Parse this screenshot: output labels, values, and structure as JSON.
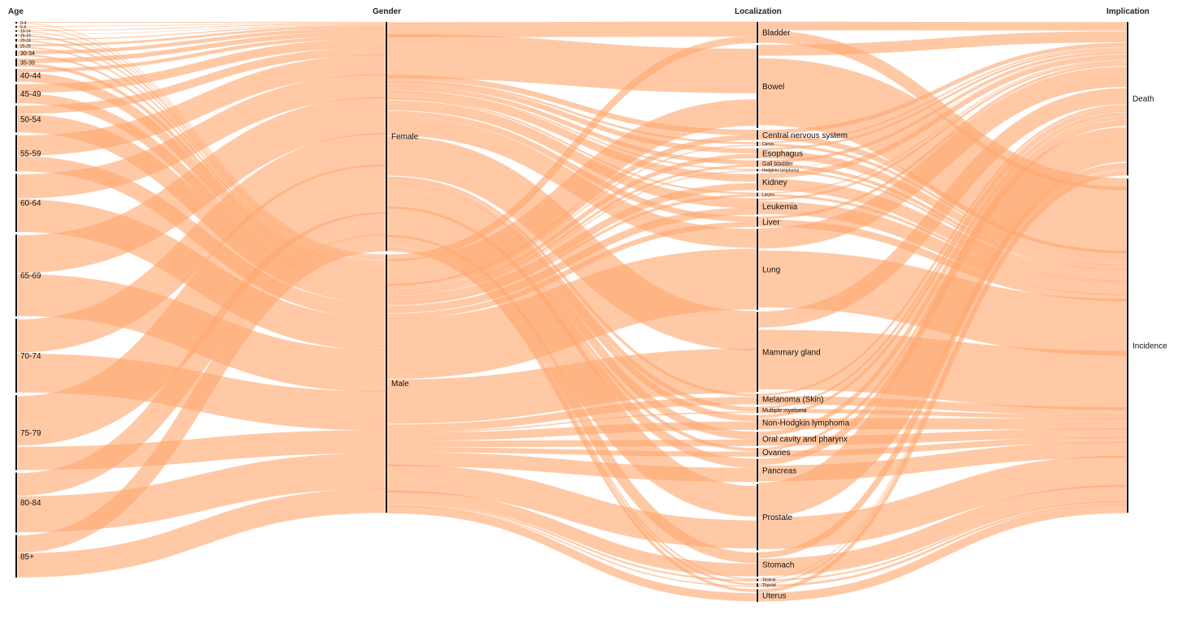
{
  "chart_data": {
    "type": "parallel_sets",
    "colors": {
      "ribbon": "#ffa870",
      "axis": "#111111",
      "background": "#ffffff"
    },
    "dimensions": [
      {
        "title": "Age",
        "categories": [
          {
            "label": "0-4",
            "weight": 0.3
          },
          {
            "label": "5-9",
            "weight": 0.3
          },
          {
            "label": "10-14",
            "weight": 0.3
          },
          {
            "label": "15-19",
            "weight": 0.4
          },
          {
            "label": "20-24",
            "weight": 0.5
          },
          {
            "label": "25-29",
            "weight": 0.7
          },
          {
            "label": "30-34",
            "weight": 1.0
          },
          {
            "label": "35-39",
            "weight": 1.4
          },
          {
            "label": "40-44",
            "weight": 2.3
          },
          {
            "label": "45-49",
            "weight": 3.4
          },
          {
            "label": "50-54",
            "weight": 4.8
          },
          {
            "label": "55-59",
            "weight": 6.5
          },
          {
            "label": "60-64",
            "weight": 10.4
          },
          {
            "label": "65-69",
            "weight": 14.6
          },
          {
            "label": "70-74",
            "weight": 13.2
          },
          {
            "label": "75-79",
            "weight": 13.4
          },
          {
            "label": "80-84",
            "weight": 10.7
          },
          {
            "label": "85+",
            "weight": 7.6
          }
        ]
      },
      {
        "title": "Gender",
        "categories": [
          {
            "label": "Female",
            "weight": 47
          },
          {
            "label": "Male",
            "weight": 53
          }
        ]
      },
      {
        "title": "Localization",
        "categories": [
          {
            "label": "Bladder",
            "weight": 3.3
          },
          {
            "label": "Bowel",
            "weight": 13.0
          },
          {
            "label": "Central nervous system",
            "weight": 1.5
          },
          {
            "label": "Cervix",
            "weight": 0.7
          },
          {
            "label": "Esophagus",
            "weight": 1.6
          },
          {
            "label": "Gall bladder",
            "weight": 1.0
          },
          {
            "label": "Hodgkins lymphoma",
            "weight": 0.4
          },
          {
            "label": "Kidney",
            "weight": 2.7
          },
          {
            "label": "Larynx",
            "weight": 0.6
          },
          {
            "label": "Leukemia",
            "weight": 2.5
          },
          {
            "label": "Liver",
            "weight": 1.6
          },
          {
            "label": "Lung",
            "weight": 12.7
          },
          {
            "label": "Mammary gland",
            "weight": 12.5
          },
          {
            "label": "Melanoma (Skin)",
            "weight": 1.7
          },
          {
            "label": "Multiple myeloma",
            "weight": 1.0
          },
          {
            "label": "Non-Hodgkin lymphoma",
            "weight": 2.3
          },
          {
            "label": "Oral cavity and pharynx",
            "weight": 2.2
          },
          {
            "label": "Ovaries",
            "weight": 1.4
          },
          {
            "label": "Pancreas",
            "weight": 3.6
          },
          {
            "label": "Prostate",
            "weight": 10.4
          },
          {
            "label": "Stomach",
            "weight": 3.8
          },
          {
            "label": "Testicle",
            "weight": 0.4
          },
          {
            "label": "Thyroid",
            "weight": 0.6
          },
          {
            "label": "Uterus",
            "weight": 2.0
          }
        ]
      },
      {
        "title": "Implication",
        "categories": [
          {
            "label": "Death",
            "weight": 31.5
          },
          {
            "label": "Incidence",
            "weight": 68.5
          }
        ]
      }
    ]
  }
}
